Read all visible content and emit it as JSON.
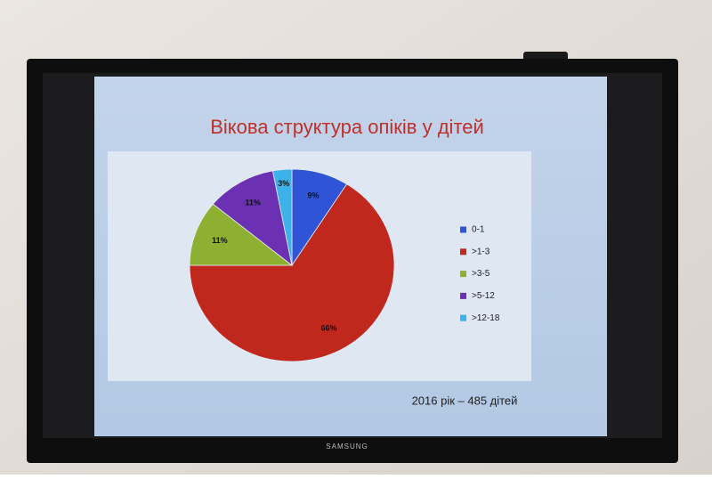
{
  "tv_brand": "SAMSUNG",
  "chart_data": {
    "type": "pie",
    "title": "Вікова структура опіків у дітей",
    "note": "2016 рік – 485 дітей",
    "categories": [
      "0-1",
      ">1-3",
      ">3-5",
      ">5-12",
      ">12-18"
    ],
    "values": [
      9,
      66,
      11,
      11,
      3
    ],
    "value_labels": [
      "9%",
      "66%",
      "11%",
      "11%",
      "3%"
    ],
    "colors": [
      "#2f55d6",
      "#c0281e",
      "#8db033",
      "#6b31b2",
      "#3db2ea"
    ],
    "legend": "right"
  }
}
